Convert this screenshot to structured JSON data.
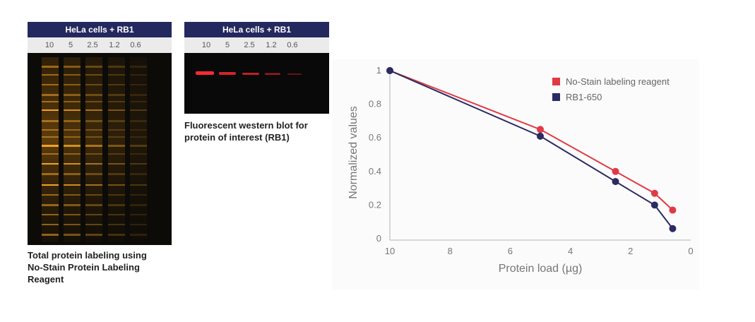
{
  "panel_total": {
    "header": "HeLa cells + RB1",
    "lanes": [
      "10",
      "5",
      "2.5",
      "1.2",
      "0.6"
    ],
    "caption": "Total protein labeling using\nNo-Stain Protein Labeling\nReagent"
  },
  "panel_western": {
    "header": "HeLa cells + RB1",
    "lanes": [
      "10",
      "5",
      "2.5",
      "1.2",
      "0.6"
    ],
    "caption": "Fluorescent western blot for\nprotein of interest (RB1)"
  },
  "colors": {
    "header_bg": "#23285e",
    "series_nostain": "#e03a45",
    "series_rb1": "#2b2a63"
  },
  "chart_data": {
    "type": "line",
    "xlabel": "Protein load (µg)",
    "ylabel": "Normalized values",
    "xlim": [
      10,
      0
    ],
    "ylim": [
      0,
      1
    ],
    "x_ticks": [
      "10",
      "8",
      "6",
      "4",
      "2",
      "0"
    ],
    "y_ticks": [
      "0",
      "0.2",
      "0.4",
      "0.6",
      "0.8",
      "1"
    ],
    "grid": false,
    "legend_position": "top-right",
    "series": [
      {
        "name": "No-Stain labeling reagent",
        "color": "#e03a45",
        "x": [
          10,
          5,
          2.5,
          1.2,
          0.6
        ],
        "y": [
          1.0,
          0.65,
          0.4,
          0.27,
          0.17
        ]
      },
      {
        "name": "RB1-650",
        "color": "#2b2a63",
        "x": [
          10,
          5,
          2.5,
          1.2,
          0.6
        ],
        "y": [
          1.0,
          0.61,
          0.34,
          0.2,
          0.06
        ]
      }
    ]
  }
}
